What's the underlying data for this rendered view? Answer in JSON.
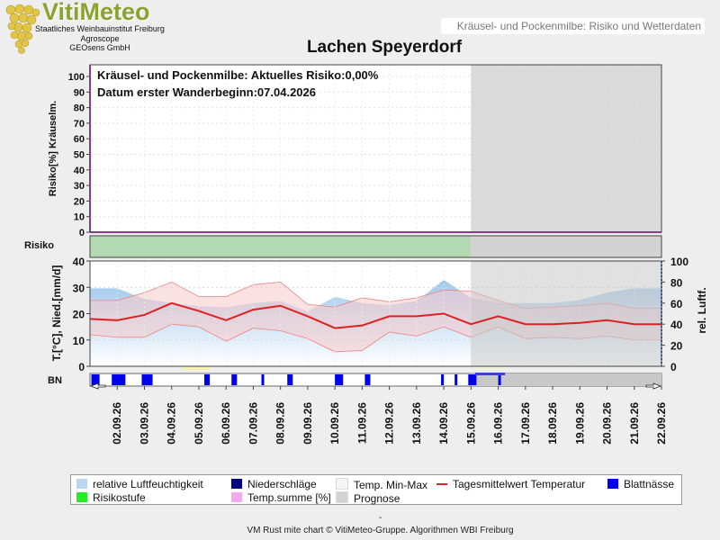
{
  "logo": {
    "title": "VitiMeteo",
    "line1": "Staatliches Weinbauinstitut Freiburg",
    "line2": "Agroscope",
    "line3": "GEOsens GmbH"
  },
  "header_text": "Kräusel- und Pockenmilbe: Risiko und Wetterdaten",
  "title": "Lachen Speyerdorf",
  "annotation1": "Kräusel- und Pockenmilbe: Aktuelles Risiko:0,00%",
  "annotation2": "Datum erster Wanderbeginn:07.04.2026",
  "footer_dash": "-",
  "footer": "VM Rust mite chart © VitiMeteo-Gruppe. Algorithmen WBI Freiburg",
  "colors": {
    "risk_line": "#cc33cc",
    "risk_band": "#b3d9b3",
    "temp_line": "#e02020",
    "temp_band": "#f8c8c8",
    "humidity": "#a0c8ec",
    "rain": "#000080",
    "leaf_wet": "#0000ee",
    "forecast": "#d3d3d3"
  },
  "chart_data": {
    "type": "line",
    "dates": [
      "02.09.26",
      "03.09.26",
      "04.09.26",
      "05.09.26",
      "06.09.26",
      "07.09.26",
      "08.09.26",
      "09.09.26",
      "10.09.26",
      "11.09.26",
      "12.09.26",
      "13.09.26",
      "14.09.26",
      "15.09.26",
      "16.09.26",
      "17.09.26",
      "18.09.26",
      "19.09.26",
      "20.09.26",
      "21.09.26",
      "22.09.26"
    ],
    "forecast_start": "15.09.26",
    "risk_panel": {
      "ylabel": "Risiko[%] Kräuselm.",
      "ylim": [
        0,
        100
      ],
      "yticks": [
        "100",
        "90",
        "80",
        "70",
        "60",
        "50",
        "40",
        "30",
        "20",
        "10",
        "0"
      ],
      "values": [
        0,
        0,
        0,
        0,
        0,
        0,
        0,
        0,
        0,
        0,
        0,
        0,
        0,
        0,
        0,
        0,
        0,
        0,
        0,
        0,
        0,
        0
      ]
    },
    "risk_strip_label": "Risiko",
    "weather_panel": {
      "ylabel_left": "T.[°C], Nied.[mm/d]",
      "ylim_left": [
        0,
        40
      ],
      "yticks_left": [
        "40",
        "30",
        "20",
        "10",
        "0"
      ],
      "ylabel_right": "rel. Luftf.",
      "ylim_right": [
        0,
        100
      ],
      "yticks_right": [
        "100",
        "80",
        "60",
        "40",
        "20",
        "0"
      ],
      "temp_mean": [
        18,
        17.5,
        19.5,
        24,
        21,
        17.5,
        21.5,
        23,
        19,
        14.5,
        15.5,
        19,
        19,
        20,
        16,
        19,
        16,
        16,
        16.5,
        17.5,
        16,
        16
      ],
      "temp_min": [
        12,
        11,
        11,
        16,
        15,
        9.5,
        14.5,
        13.5,
        10.5,
        5.5,
        6,
        13,
        11.5,
        15,
        11,
        15,
        10.5,
        11,
        10.5,
        11.5,
        10,
        10
      ],
      "temp_max": [
        25,
        25,
        28,
        32,
        26.5,
        26.5,
        31,
        32,
        23.5,
        22.5,
        26,
        24.5,
        26,
        29,
        28.5,
        25,
        22,
        22.5,
        23,
        24,
        22,
        22
      ],
      "humidity": [
        74,
        74,
        64,
        60,
        57,
        56,
        60,
        62,
        52,
        66,
        60,
        58,
        62,
        82,
        65,
        60,
        60,
        60,
        63,
        70,
        74,
        74
      ]
    },
    "bn_label": "BN",
    "legend": [
      {
        "label": "relative Luftfeuchtigkeit",
        "color": "#b9d6f2"
      },
      {
        "label": "Niederschläge",
        "color": "#000080"
      },
      {
        "label": "Temp. Min-Max",
        "color": "#f5f5f5"
      },
      {
        "label": "Tagesmittelwert Temperatur",
        "color": "#e02020"
      },
      {
        "label": "Blattnässe",
        "color": "#0000ee"
      },
      {
        "label": "Risikostufe",
        "color": "#22ee22"
      },
      {
        "label": "Temp.summe [%]",
        "color": "#f4a8f0"
      },
      {
        "label": "Prognose",
        "color": "#d3d3d3"
      }
    ]
  }
}
